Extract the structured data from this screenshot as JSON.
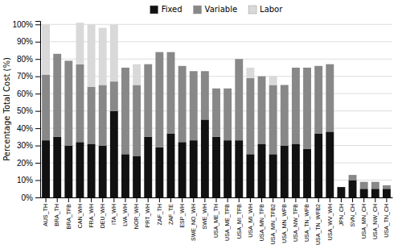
{
  "chart_data": {
    "type": "bar",
    "stacked": true,
    "ylabel": "Percentage Total Cost (%)",
    "categories": [
      "AUS_TH",
      "BRA_TH",
      "BRA_TFB",
      "CAN_WH",
      "FRA_WH",
      "DEU_WH",
      "ITA_WH",
      "LVA_WH",
      "NOR_WH",
      "PRT_WH",
      "ZAF_TH",
      "ZAF_TE",
      "ESP_WH",
      "SWE_NO_WH",
      "SWE_WH",
      "USA_ME_TH",
      "USA_ME_TFB",
      "USA_MI_TFB",
      "USA_MI_WH",
      "USA_MN_TFB",
      "USA_MN_TFB2",
      "USA_MN_WFB",
      "USA_NW_TFB",
      "USA_TN_WFB",
      "USA_TN_WFB2",
      "USA_WV_WH",
      "JPN_CH",
      "SVN_CH",
      "USA_MN_CH",
      "USA_NW_CH",
      "USA_TN_CH"
    ],
    "series": [
      {
        "name": "Fixed",
        "color": "#111111",
        "values": [
          33,
          35,
          30,
          32,
          31,
          30,
          50,
          25,
          24,
          35,
          29,
          37,
          32,
          33,
          45,
          35,
          33,
          33,
          25,
          31,
          25,
          30,
          31,
          28,
          37,
          38,
          6,
          10,
          5,
          5,
          5
        ]
      },
      {
        "name": "Variable",
        "color": "#888888",
        "values": [
          38,
          48,
          49,
          45,
          33,
          35,
          17,
          50,
          41,
          42,
          55,
          47,
          44,
          40,
          28,
          28,
          30,
          47,
          44,
          39,
          40,
          35,
          44,
          47,
          39,
          39,
          0,
          3,
          4,
          4,
          2
        ]
      },
      {
        "name": "Labor",
        "color": "#d9d9d9",
        "values": [
          29,
          0,
          0,
          24,
          36,
          33,
          33,
          0,
          12,
          0,
          0,
          0,
          0,
          0,
          0,
          0,
          0,
          0,
          6,
          0,
          5,
          0,
          0,
          0,
          0,
          0,
          0,
          0,
          0,
          0,
          0
        ]
      }
    ],
    "ylim": [
      0,
      102
    ],
    "yticks": [
      {
        "value": 0,
        "label": "0%"
      },
      {
        "value": 10,
        "label": "10%"
      },
      {
        "value": 20,
        "label": "20%"
      },
      {
        "value": 30,
        "label": "30%"
      },
      {
        "value": 40,
        "label": "40%"
      },
      {
        "value": 50,
        "label": "50%"
      },
      {
        "value": 60,
        "label": "60%"
      },
      {
        "value": 70,
        "label": "70%"
      },
      {
        "value": 80,
        "label": "80%"
      },
      {
        "value": 90,
        "label": "90%"
      },
      {
        "value": 100,
        "label": "100%"
      }
    ],
    "grid": true,
    "legend": "top"
  }
}
